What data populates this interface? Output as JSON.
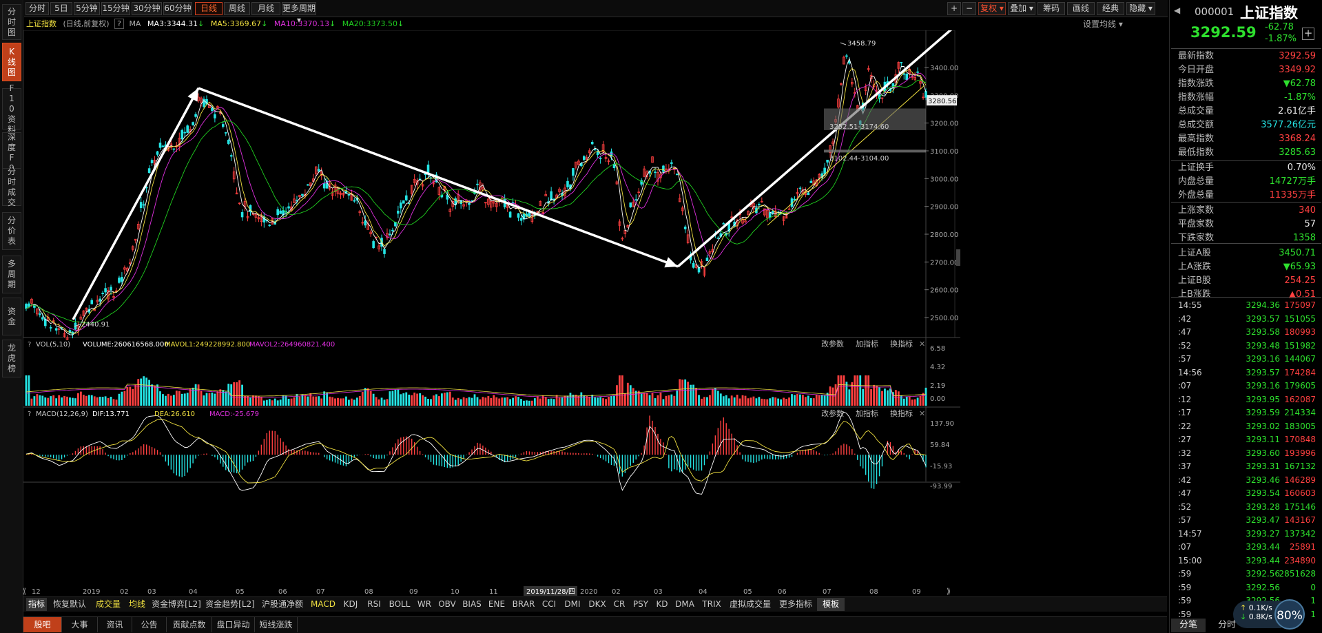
{
  "left_nav": [
    {
      "label": "分时图",
      "active": false
    },
    {
      "label": "K线图",
      "active": true
    },
    {
      "label": "F10资料",
      "active": false
    },
    {
      "label": "深度F9",
      "active": false
    },
    {
      "label": "分时成交",
      "active": false
    },
    {
      "label": "分价表",
      "active": false
    },
    {
      "label": "多周期",
      "active": false
    },
    {
      "label": "资金",
      "active": false
    },
    {
      "label": "龙虎榜",
      "active": false
    }
  ],
  "periods": [
    {
      "label": "分时",
      "active": false
    },
    {
      "label": "5日",
      "active": false
    },
    {
      "label": "5分钟",
      "active": false
    },
    {
      "label": "15分钟",
      "active": false
    },
    {
      "label": "30分钟",
      "active": false
    },
    {
      "label": "60分钟",
      "active": false
    },
    {
      "label": "日线",
      "active": true
    },
    {
      "label": "周线",
      "active": false
    },
    {
      "label": "月线",
      "active": false
    },
    {
      "label": "更多周期",
      "active": false
    }
  ],
  "toolbar_right": {
    "plus": "+",
    "minus": "−",
    "fuquan": "复权",
    "overlay": "叠加",
    "chouma": "筹码",
    "huaxian": "画线",
    "classic": "经典",
    "hide": "隐藏"
  },
  "info": {
    "name": "上证指数",
    "mode": "(日线,前复权)",
    "help": "?",
    "ma_label": "MA",
    "ma3": "MA3:3344.31",
    "ma5": "MA5:3369.67",
    "ma10": "MA10:3370.13",
    "ma20": "MA20:3373.50",
    "settings": "设置均线"
  },
  "stock": {
    "code": "000001",
    "name": "上证指数",
    "price": "3292.59",
    "change": "-62.78",
    "pct": "-1.87%"
  },
  "quote": [
    {
      "label": "最新指数",
      "value": "3292.59",
      "color": "red"
    },
    {
      "label": "今日开盘",
      "value": "3349.92",
      "color": "red"
    },
    {
      "label": "指数涨跌",
      "value": "▼62.78",
      "color": "grn"
    },
    {
      "label": "指数涨幅",
      "value": "-1.87%",
      "color": "grn"
    },
    {
      "label": "总成交量",
      "value": "2.61亿手",
      "color": "wht"
    },
    {
      "label": "总成交额",
      "value": "3577.26亿元",
      "color": "cy"
    },
    {
      "label": "最高指数",
      "value": "3368.24",
      "color": "red"
    },
    {
      "label": "最低指数",
      "value": "3285.63",
      "color": "grn"
    },
    {
      "label": "上证换手",
      "value": "0.70%",
      "color": "wht"
    },
    {
      "label": "内盘总量",
      "value": "14727万手",
      "color": "grn"
    },
    {
      "label": "外盘总量",
      "value": "11335万手",
      "color": "red"
    },
    {
      "label": "上涨家数",
      "value": "340",
      "color": "red"
    },
    {
      "label": "平盘家数",
      "value": "57",
      "color": "wht"
    },
    {
      "label": "下跌家数",
      "value": "1358",
      "color": "grn"
    },
    {
      "label": "上证A股",
      "value": "3450.71",
      "color": "grn"
    },
    {
      "label": "上A涨跌",
      "value": "▼65.93",
      "color": "grn"
    },
    {
      "label": "上证B股",
      "value": "254.25",
      "color": "red"
    },
    {
      "label": "上B涨跌",
      "value": "▲0.51",
      "color": "red"
    }
  ],
  "ticks": [
    {
      "t": "14:55",
      "p": "3294.36",
      "q": "175097",
      "pc": "grn",
      "qc": "red"
    },
    {
      "t": ":42",
      "p": "3293.57",
      "q": "151055",
      "pc": "grn",
      "qc": "grn"
    },
    {
      "t": ":47",
      "p": "3293.58",
      "q": "180993",
      "pc": "grn",
      "qc": "red"
    },
    {
      "t": ":52",
      "p": "3293.48",
      "q": "151982",
      "pc": "grn",
      "qc": "grn"
    },
    {
      "t": ":57",
      "p": "3293.16",
      "q": "144067",
      "pc": "grn",
      "qc": "grn"
    },
    {
      "t": "14:56",
      "p": "3293.57",
      "q": "174284",
      "pc": "grn",
      "qc": "red"
    },
    {
      "t": ":07",
      "p": "3293.16",
      "q": "179605",
      "pc": "grn",
      "qc": "grn"
    },
    {
      "t": ":12",
      "p": "3293.95",
      "q": "162087",
      "pc": "grn",
      "qc": "red"
    },
    {
      "t": ":17",
      "p": "3293.59",
      "q": "214334",
      "pc": "grn",
      "qc": "grn"
    },
    {
      "t": ":22",
      "p": "3293.02",
      "q": "183005",
      "pc": "grn",
      "qc": "grn"
    },
    {
      "t": ":27",
      "p": "3293.11",
      "q": "170848",
      "pc": "grn",
      "qc": "red"
    },
    {
      "t": ":32",
      "p": "3293.60",
      "q": "193996",
      "pc": "grn",
      "qc": "red"
    },
    {
      "t": ":37",
      "p": "3293.31",
      "q": "167132",
      "pc": "grn",
      "qc": "grn"
    },
    {
      "t": ":42",
      "p": "3293.46",
      "q": "146289",
      "pc": "grn",
      "qc": "red"
    },
    {
      "t": ":47",
      "p": "3293.54",
      "q": "160603",
      "pc": "grn",
      "qc": "red"
    },
    {
      "t": ":52",
      "p": "3293.28",
      "q": "175146",
      "pc": "grn",
      "qc": "grn"
    },
    {
      "t": ":57",
      "p": "3293.47",
      "q": "143167",
      "pc": "grn",
      "qc": "red"
    },
    {
      "t": "14:57",
      "p": "3293.27",
      "q": "137342",
      "pc": "grn",
      "qc": "grn"
    },
    {
      "t": ":07",
      "p": "3293.44",
      "q": "25891",
      "pc": "grn",
      "qc": "red"
    },
    {
      "t": "15:00",
      "p": "3293.44",
      "q": "234890",
      "pc": "grn",
      "qc": "red"
    },
    {
      "t": ":59",
      "p": "3292.56",
      "q": "2851628",
      "pc": "grn",
      "qc": "grn"
    },
    {
      "t": ":59",
      "p": "3292.56",
      "q": "0",
      "pc": "grn",
      "qc": "grn"
    },
    {
      "t": ":59",
      "p": "3292.56",
      "q": "1",
      "pc": "grn",
      "qc": "grn"
    },
    {
      "t": ":59",
      "p": "3292.56",
      "q": "1",
      "pc": "grn",
      "qc": "grn"
    }
  ],
  "right_tabs": {
    "tab1": "分笔",
    "tab2": "分时"
  },
  "net": {
    "up": "0.1K/s",
    "down": "0.8K/s",
    "pct": "80%"
  },
  "price_axis": [
    "3400.00",
    "3300.00",
    "3200.00",
    "3100.00",
    "3000.00",
    "2900.00",
    "2800.00",
    "2700.00",
    "2600.00",
    "2500.00"
  ],
  "price_marker": "3280.56",
  "annotations": {
    "high": "3458.79",
    "low": "2440.91",
    "gap1": "3252.51-3174.60",
    "gap2": "3102.44-3104.00"
  },
  "vol": {
    "label": "VOL(5,10)",
    "volume": "VOLUME:260616568.000",
    "mavol1": "MAVOL1:249228992.800",
    "mavol2": "MAVOL2:264960821.400",
    "axis": [
      "6.58",
      "4.32",
      "2.19",
      "0.00"
    ],
    "btns": [
      "改参数",
      "加指标",
      "换指标"
    ]
  },
  "macd": {
    "label": "MACD(12,26,9)",
    "dif": "DIF:13.771",
    "dea": "DEA:26.610",
    "macd": "MACD:-25.679",
    "axis": [
      "137.90",
      "59.84",
      "-15.93",
      "-93.99"
    ],
    "btns": [
      "改参数",
      "加指标",
      "换指标"
    ]
  },
  "time_axis": [
    "12",
    "2019",
    "02",
    "03",
    "04",
    "05",
    "06",
    "07",
    "08",
    "09",
    "10",
    "11",
    "2019/11/28/四",
    "2020",
    "02",
    "03",
    "04",
    "05",
    "06",
    "07",
    "08",
    "09"
  ],
  "ind_tabs": [
    "指标",
    "恢复默认",
    "成交量",
    "均线",
    "资金博弈[L2]",
    "资金趋势[L2]",
    "沪股通净额",
    "MACD",
    "KDJ",
    "RSI",
    "BOLL",
    "WR",
    "OBV",
    "BIAS",
    "ENE",
    "BRAR",
    "CCI",
    "DMI",
    "DKX",
    "CR",
    "PSY",
    "KD",
    "DMA",
    "TRIX",
    "虚拟成交量",
    "更多指标",
    "模板"
  ],
  "bottom_tabs": [
    "股吧",
    "大事",
    "资讯",
    "公告",
    "贡献点数",
    "盘口异动",
    "短线涨跌"
  ],
  "colors": {
    "up": "#ff4040",
    "down": "#25e5e5",
    "ma3": "#ffffff",
    "ma5": "#f0e040",
    "ma10": "#e030e0",
    "ma20": "#20d020",
    "active": "#c0401a"
  },
  "chart_data": {
    "type": "candlestick",
    "title": "上证指数 日线 前复权",
    "x_range": [
      "2018-12",
      "2020-09"
    ],
    "y_range": [
      2440.91,
      3458.79
    ],
    "anchors": [
      {
        "x": "2019-01",
        "y": 2440.91
      },
      {
        "x": "2019-04",
        "y": 3288
      },
      {
        "x": "2019-06",
        "y": 2860
      },
      {
        "x": "2019-08",
        "y": 2760
      },
      {
        "x": "2019-09",
        "y": 3000
      },
      {
        "x": "2019-12",
        "y": 2880
      },
      {
        "x": "2020-01",
        "y": 3115
      },
      {
        "x": "2020-02",
        "y": 2700
      },
      {
        "x": "2020-03",
        "y": 3070
      },
      {
        "x": "2020-03-23",
        "y": 2646
      },
      {
        "x": "2020-06",
        "y": 2900
      },
      {
        "x": "2020-07",
        "y": 3458.79
      },
      {
        "x": "2020-09",
        "y": 3292.59
      }
    ]
  }
}
